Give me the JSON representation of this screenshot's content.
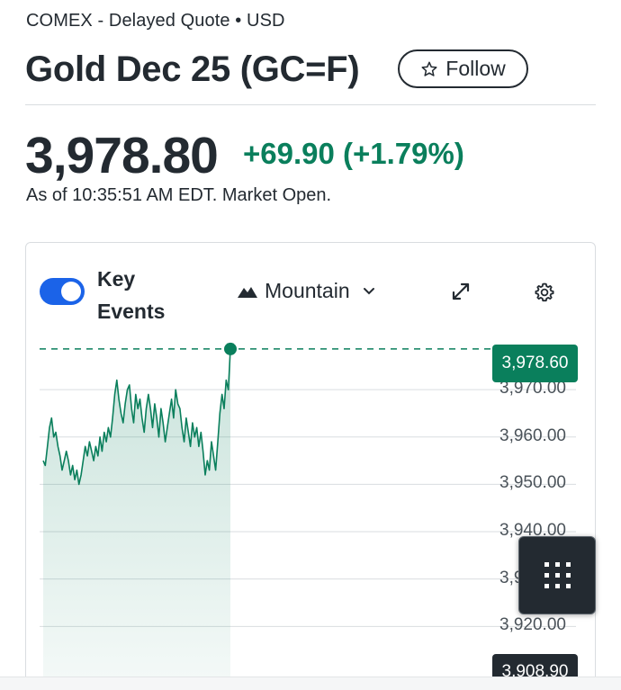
{
  "header": {
    "exchange": "COMEX - Delayed Quote • USD",
    "title": "Gold Dec 25 (GC=F)",
    "follow_label": "Follow"
  },
  "quote": {
    "price": "3,978.80",
    "change": "+69.90 (+1.79%)",
    "as_of": "As of 10:35:51 AM EDT. Market Open."
  },
  "controls": {
    "key_events_label": "Key Events",
    "key_events_on": true,
    "chart_type": "Mountain",
    "icons": [
      "expand-icon",
      "gear-icon",
      "grid-menu-icon",
      "mountain-icon",
      "star-icon",
      "chevron-down-icon"
    ]
  },
  "colors": {
    "accent_green": "#0a7f5c",
    "toggle_blue": "#1b63e8",
    "dark": "#232a31"
  },
  "chart_data": {
    "type": "area",
    "ylim": [
      3906,
      3982
    ],
    "y_ticks": [
      "3,970.00",
      "3,960.00",
      "3,950.00",
      "3,940.00",
      "3,930.00",
      "3,920.00"
    ],
    "current_label": "3,978.60",
    "current_value": 3978.6,
    "baseline_label": "3,908.90",
    "baseline_value": 3908.9,
    "series": [
      {
        "values": [
          3955,
          3954,
          3958,
          3962,
          3964,
          3960,
          3961,
          3958,
          3956,
          3953,
          3955,
          3957,
          3955,
          3952,
          3954,
          3951,
          3953,
          3950,
          3952,
          3955,
          3958,
          3956,
          3959,
          3957,
          3955,
          3958,
          3956,
          3960,
          3957,
          3961,
          3959,
          3962,
          3960,
          3964,
          3969,
          3972,
          3968,
          3965,
          3963,
          3967,
          3970,
          3971,
          3966,
          3963,
          3969,
          3966,
          3968,
          3964,
          3961,
          3966,
          3969,
          3966,
          3962,
          3967,
          3964,
          3960,
          3966,
          3963,
          3959,
          3962,
          3965,
          3968,
          3964,
          3970,
          3967,
          3966,
          3962,
          3959,
          3964,
          3961,
          3958,
          3963,
          3960,
          3962,
          3958,
          3961,
          3957,
          3952,
          3955,
          3953,
          3959,
          3956,
          3953,
          3959,
          3965,
          3969,
          3966,
          3972,
          3970,
          3978.6
        ]
      }
    ]
  }
}
